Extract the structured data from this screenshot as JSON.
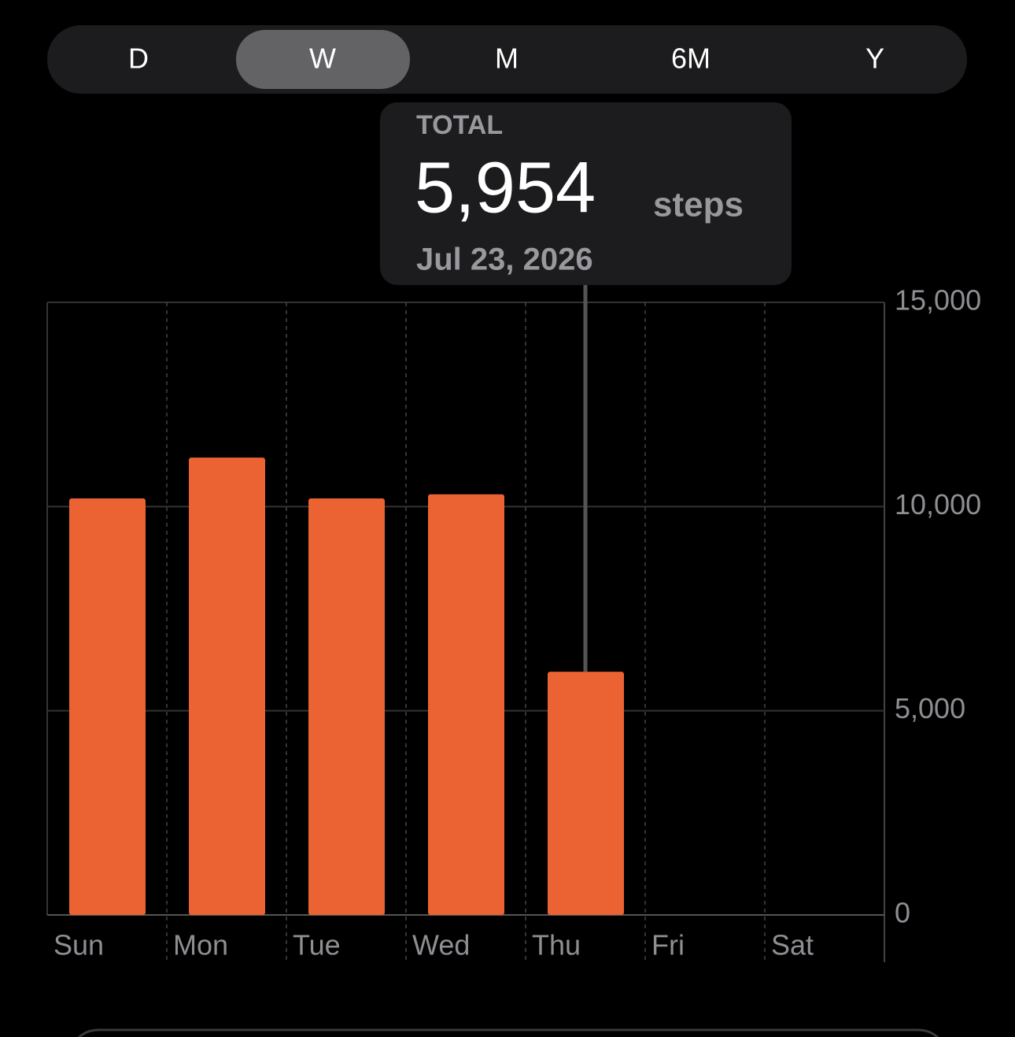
{
  "tabs": [
    "D",
    "W",
    "M",
    "6M",
    "Y"
  ],
  "selected_tab": 1,
  "chart_data": {
    "type": "bar",
    "categories": [
      "Sun",
      "Mon",
      "Tue",
      "Wed",
      "Thu",
      "Fri",
      "Sat"
    ],
    "values": [
      10200,
      11200,
      10200,
      10300,
      5954,
      null,
      null
    ],
    "color": "#eb6333",
    "ylim": [
      0,
      15000
    ],
    "yticks": [
      0,
      {
        "value": 5000,
        "label": "5,000"
      },
      {
        "value": 10000,
        "label": "10,000"
      },
      {
        "value": 15000,
        "label": "15,000"
      }
    ],
    "grid": true,
    "tooltip": {
      "label": "TOTAL",
      "value": 5954,
      "value_label": "5,954",
      "unit": "steps",
      "date": "Jul 23, 2026"
    }
  }
}
